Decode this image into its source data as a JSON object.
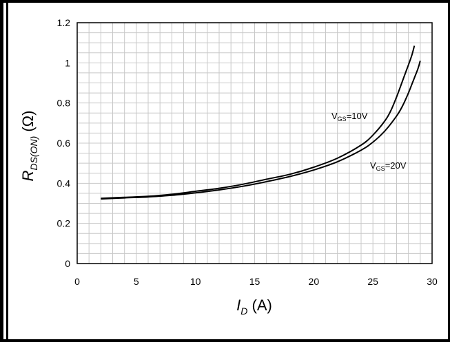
{
  "chart_data": {
    "type": "line",
    "xlabel_main": "I",
    "xlabel_sub": "D",
    "xlabel_unit": " (A)",
    "ylabel_main": "R",
    "ylabel_sub": "DS(ON)",
    "ylabel_unit": " (Ω)",
    "xlim": [
      0,
      30
    ],
    "ylim": [
      0,
      1.2
    ],
    "x_ticks": [
      0,
      5,
      10,
      15,
      20,
      25,
      30
    ],
    "x_tick_labels": [
      "0",
      "5",
      "10",
      "15",
      "20",
      "25",
      "30"
    ],
    "y_ticks": [
      0,
      0.2,
      0.4,
      0.6,
      0.8,
      1.0,
      1.2
    ],
    "y_tick_labels": [
      "0",
      "0.2",
      "0.4",
      "0.6",
      "0.8",
      "1",
      "1.2"
    ],
    "grid": true,
    "series": [
      {
        "name": "VGS=10V",
        "name_main": "V",
        "name_sub": "GS",
        "name_rest": "=10V",
        "x": [
          2,
          4,
          6,
          8,
          10,
          12,
          14,
          16,
          18,
          20,
          22,
          24,
          25,
          26,
          26.5,
          27,
          27.5,
          28,
          28.3,
          28.5
        ],
        "y": [
          0.325,
          0.33,
          0.335,
          0.345,
          0.36,
          0.375,
          0.395,
          0.42,
          0.445,
          0.48,
          0.525,
          0.59,
          0.64,
          0.71,
          0.76,
          0.83,
          0.91,
          0.99,
          1.04,
          1.085
        ]
      },
      {
        "name": "VGS=20V",
        "name_main": "V",
        "name_sub": "GS",
        "name_rest": "=20V",
        "x": [
          2,
          4,
          6,
          8,
          10,
          12,
          14,
          16,
          18,
          20,
          22,
          24,
          25,
          26,
          27,
          27.5,
          28,
          28.5,
          28.8,
          29
        ],
        "y": [
          0.322,
          0.327,
          0.332,
          0.34,
          0.352,
          0.367,
          0.385,
          0.408,
          0.434,
          0.466,
          0.507,
          0.565,
          0.605,
          0.66,
          0.735,
          0.785,
          0.85,
          0.925,
          0.97,
          1.01
        ]
      }
    ]
  }
}
